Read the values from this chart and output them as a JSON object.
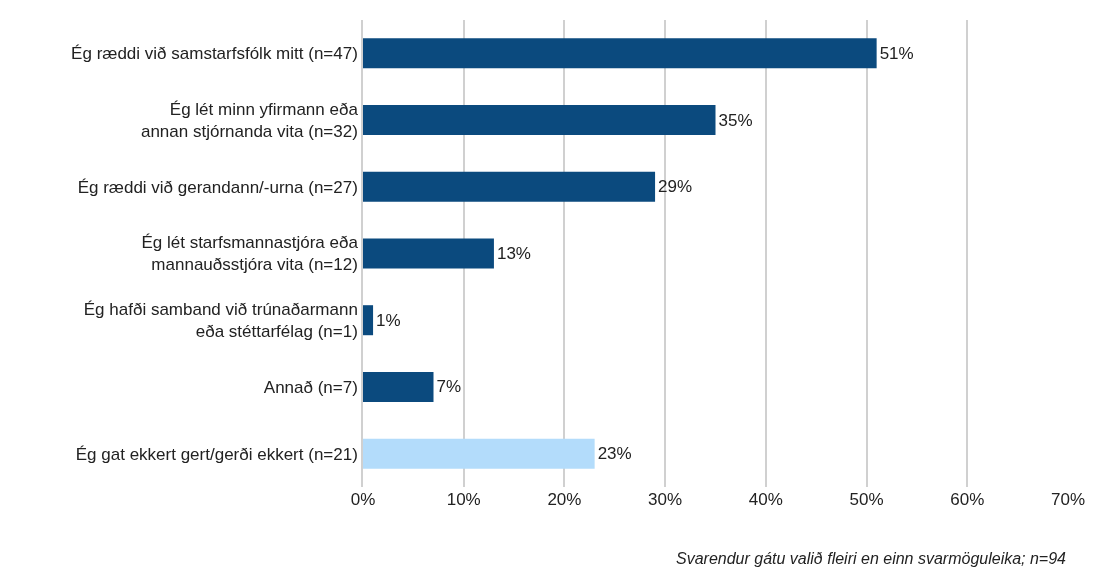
{
  "chart_data": {
    "type": "bar",
    "orientation": "horizontal",
    "categories": [
      "Ég ræddi við samstarfsfólk mitt (n=47)",
      "Ég lét minn yfirmann eða\nannan stjórnanda vita (n=32)",
      "Ég ræddi við gerandann/-urna (n=27)",
      "Ég lét starfsmannastjóra eða\nmannauðsstjóra vita (n=12)",
      "Ég hafði samband við trúnaðarmann\neða stéttarfélag (n=1)",
      "Annað (n=7)",
      "Ég gat ekkert gert/gerði ekkert (n=21)"
    ],
    "values": [
      51,
      35,
      29,
      13,
      1,
      7,
      23
    ],
    "colors": [
      "#0b4a7e",
      "#0b4a7e",
      "#0b4a7e",
      "#0b4a7e",
      "#0b4a7e",
      "#0b4a7e",
      "#b3dcfb"
    ],
    "value_labels": [
      "51%",
      "35%",
      "29%",
      "13%",
      "1%",
      "7%",
      "23%"
    ],
    "xlim": [
      0,
      70
    ],
    "xticks": [
      {
        "value": 0,
        "label": "0%"
      },
      {
        "value": 10,
        "label": "10%"
      },
      {
        "value": 20,
        "label": "20%"
      },
      {
        "value": 30,
        "label": "30%"
      },
      {
        "value": 40,
        "label": "40%"
      },
      {
        "value": 50,
        "label": "50%"
      },
      {
        "value": 60,
        "label": "60%"
      },
      {
        "value": 70,
        "label": "70%"
      }
    ],
    "grid": "x",
    "legend": false,
    "annotations": [
      "Svarendur gátu valið fleiri en einn svarmöguleika; n=94"
    ]
  }
}
